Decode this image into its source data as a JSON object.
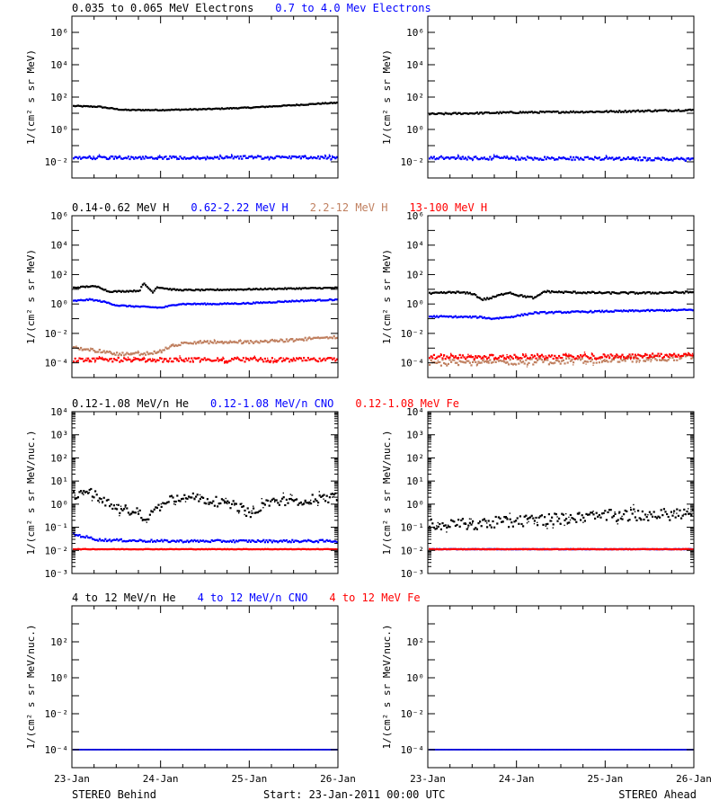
{
  "footer": {
    "left": "STEREO Behind",
    "center": "Start: 23-Jan-2011 00:00 UTC",
    "right": "STEREO Ahead"
  },
  "colors": {
    "black": "#000000",
    "blue": "#0000ff",
    "tan": "#c08060",
    "red": "#ff0000"
  },
  "chart_data": [
    {
      "type": "scatter",
      "row": 1,
      "col": 1,
      "legend": [
        {
          "text": "0.035 to 0.065 MeV Electrons",
          "color": "#000000"
        },
        {
          "text": "0.7 to 4.0 Mev Electrons",
          "color": "#0000ff"
        }
      ],
      "ylabel": "1/(cm² s sr MeV)",
      "yscale": "log",
      "ylim_exp": [
        -3,
        7
      ],
      "yticks": [
        {
          "exp": -2,
          "text": "10⁻²"
        },
        {
          "exp": 0,
          "text": "10⁰"
        },
        {
          "exp": 2,
          "text": "10²"
        },
        {
          "exp": 4,
          "text": "10⁴"
        },
        {
          "exp": 6,
          "text": "10⁶"
        }
      ],
      "xlim": [
        0,
        3
      ],
      "xticks": [],
      "grid": false,
      "series": [
        {
          "color": "#000000",
          "width": 2.2,
          "jitter": 0.03,
          "x": [
            0,
            0.3,
            0.5,
            0.6,
            1.0,
            1.5,
            2.0,
            2.5,
            2.8,
            3.0
          ],
          "y_exp": [
            1.45,
            1.4,
            1.25,
            1.2,
            1.2,
            1.25,
            1.35,
            1.5,
            1.6,
            1.65
          ]
        },
        {
          "color": "#0000ff",
          "width": 2.2,
          "jitter": 0.09,
          "x": [
            0,
            1.0,
            2.0,
            3.0
          ],
          "y_exp": [
            -1.75,
            -1.75,
            -1.72,
            -1.75
          ]
        }
      ]
    },
    {
      "type": "scatter",
      "row": 1,
      "col": 2,
      "legend": [],
      "ylabel": "1/(cm² s sr MeV)",
      "yscale": "log",
      "ylim_exp": [
        -3,
        7
      ],
      "yticks": [
        {
          "exp": -2,
          "text": "10⁻²"
        },
        {
          "exp": 0,
          "text": "10⁰"
        },
        {
          "exp": 2,
          "text": "10²"
        },
        {
          "exp": 4,
          "text": "10⁴"
        },
        {
          "exp": 6,
          "text": "10⁶"
        }
      ],
      "xlim": [
        0,
        3
      ],
      "xticks": [],
      "grid": false,
      "series": [
        {
          "color": "#000000",
          "width": 2.2,
          "jitter": 0.05,
          "x": [
            0,
            1.0,
            2.0,
            3.0
          ],
          "y_exp": [
            0.95,
            1.05,
            1.1,
            1.2
          ]
        },
        {
          "color": "#0000ff",
          "width": 2.2,
          "jitter": 0.1,
          "x": [
            0,
            1.0,
            2.0,
            3.0
          ],
          "y_exp": [
            -1.75,
            -1.78,
            -1.8,
            -1.85
          ]
        }
      ]
    },
    {
      "type": "scatter",
      "row": 2,
      "col": 1,
      "legend": [
        {
          "text": "0.14-0.62 MeV H",
          "color": "#000000"
        },
        {
          "text": "0.62-2.22 MeV H",
          "color": "#0000ff"
        },
        {
          "text": "2.2-12 MeV H",
          "color": "#c08060"
        },
        {
          "text": "13-100 MeV H",
          "color": "#ff0000"
        }
      ],
      "ylabel": "1/(cm² s sr MeV)",
      "yscale": "log",
      "ylim_exp": [
        -5,
        6
      ],
      "yticks": [
        {
          "exp": -4,
          "text": "10⁻⁴"
        },
        {
          "exp": -2,
          "text": "10⁻²"
        },
        {
          "exp": 0,
          "text": "10⁰"
        },
        {
          "exp": 2,
          "text": "10²"
        },
        {
          "exp": 4,
          "text": "10⁴"
        },
        {
          "exp": 6,
          "text": "10⁶"
        }
      ],
      "xlim": [
        0,
        3
      ],
      "xticks": [],
      "grid": false,
      "series": [
        {
          "color": "#000000",
          "width": 2.2,
          "jitter": 0.04,
          "x": [
            0,
            0.2,
            0.3,
            0.4,
            0.5,
            0.75,
            0.8,
            0.9,
            0.95,
            1.1,
            1.2,
            1.5,
            2.0,
            2.5,
            3.0
          ],
          "y_exp": [
            1.1,
            1.2,
            1.15,
            0.85,
            0.85,
            0.9,
            1.4,
            0.8,
            1.15,
            1.0,
            0.95,
            0.95,
            1.0,
            1.05,
            1.1
          ]
        },
        {
          "color": "#0000ff",
          "width": 2.2,
          "jitter": 0.04,
          "x": [
            0,
            0.2,
            0.35,
            0.5,
            0.8,
            1.0,
            1.2,
            1.6,
            2.0,
            2.5,
            3.0
          ],
          "y_exp": [
            0.2,
            0.3,
            0.15,
            -0.1,
            -0.2,
            -0.25,
            0.0,
            0.0,
            0.05,
            0.2,
            0.3
          ]
        },
        {
          "color": "#c08060",
          "width": 2.2,
          "jitter": 0.1,
          "x": [
            0,
            0.3,
            0.5,
            0.8,
            1.0,
            1.1,
            1.3,
            1.8,
            2.2,
            2.6,
            3.0
          ],
          "y_exp": [
            -3.0,
            -3.2,
            -3.4,
            -3.4,
            -3.2,
            -2.9,
            -2.6,
            -2.6,
            -2.55,
            -2.4,
            -2.25
          ]
        },
        {
          "color": "#ff0000",
          "width": 2.2,
          "jitter": 0.14,
          "x": [
            0,
            1.0,
            2.0,
            3.0
          ],
          "y_exp": [
            -3.8,
            -3.8,
            -3.8,
            -3.8
          ]
        }
      ]
    },
    {
      "type": "scatter",
      "row": 2,
      "col": 2,
      "legend": [],
      "ylabel": "1/(cm² s sr MeV)",
      "yscale": "log",
      "ylim_exp": [
        -5,
        6
      ],
      "yticks": [
        {
          "exp": -4,
          "text": "10⁻⁴"
        },
        {
          "exp": -2,
          "text": "10⁻²"
        },
        {
          "exp": 0,
          "text": "10⁰"
        },
        {
          "exp": 2,
          "text": "10²"
        },
        {
          "exp": 4,
          "text": "10⁴"
        },
        {
          "exp": 6,
          "text": "10⁶"
        }
      ],
      "xlim": [
        0,
        3
      ],
      "xticks": [],
      "grid": false,
      "series": [
        {
          "color": "#000000",
          "width": 2.2,
          "jitter": 0.06,
          "x": [
            0,
            0.3,
            0.5,
            0.6,
            0.7,
            0.8,
            0.9,
            1.0,
            1.2,
            1.3,
            1.5,
            2.0,
            2.5,
            3.0
          ],
          "y_exp": [
            0.7,
            0.8,
            0.7,
            0.3,
            0.4,
            0.6,
            0.8,
            0.6,
            0.4,
            0.85,
            0.8,
            0.75,
            0.75,
            0.8
          ]
        },
        {
          "color": "#0000ff",
          "width": 2.2,
          "jitter": 0.05,
          "x": [
            0,
            0.6,
            0.7,
            0.9,
            1.2,
            2.0,
            3.0
          ],
          "y_exp": [
            -0.85,
            -0.9,
            -1.0,
            -0.9,
            -0.6,
            -0.5,
            -0.4
          ]
        },
        {
          "color": "#c08060",
          "width": 2.2,
          "jitter": 0.2,
          "x": [
            0,
            1.5,
            3.0
          ],
          "y_exp": [
            -4.0,
            -3.9,
            -3.6
          ]
        },
        {
          "color": "#ff0000",
          "width": 2.2,
          "jitter": 0.15,
          "x": [
            0,
            1.5,
            3.0
          ],
          "y_exp": [
            -3.6,
            -3.6,
            -3.5
          ]
        }
      ]
    },
    {
      "type": "scatter",
      "row": 3,
      "col": 1,
      "legend": [
        {
          "text": "0.12-1.08 MeV/n He",
          "color": "#000000"
        },
        {
          "text": "0.12-1.08 MeV/n CNO",
          "color": "#0000ff"
        },
        {
          "text": "0.12-1.08 MeV Fe",
          "color": "#ff0000"
        }
      ],
      "ylabel": "1/(cm² s sr MeV/nuc.)",
      "yscale": "log",
      "ylim_exp": [
        -3,
        4
      ],
      "yticks": [
        {
          "exp": -3,
          "text": "10⁻³"
        },
        {
          "exp": -2,
          "text": "10⁻²"
        },
        {
          "exp": -1,
          "text": "10⁻¹"
        },
        {
          "exp": 0,
          "text": "10⁰"
        },
        {
          "exp": 1,
          "text": "10¹"
        },
        {
          "exp": 2,
          "text": "10²"
        },
        {
          "exp": 3,
          "text": "10³"
        },
        {
          "exp": 4,
          "text": "10⁴"
        }
      ],
      "xlim": [
        0,
        3
      ],
      "xticks": [],
      "grid": false,
      "series": [
        {
          "color": "#000000",
          "width": 2.2,
          "jitter": 0.2,
          "x": [
            0,
            0.15,
            0.25,
            0.35,
            0.5,
            0.7,
            0.85,
            0.95,
            1.1,
            1.3,
            1.5,
            1.7,
            1.9,
            2.0,
            2.2,
            2.5,
            2.8,
            3.0
          ],
          "y_exp": [
            0.35,
            0.5,
            0.45,
            0.1,
            -0.2,
            -0.3,
            -0.6,
            -0.2,
            0.2,
            0.3,
            0.2,
            0.05,
            -0.15,
            -0.45,
            0.1,
            0.15,
            0.25,
            0.3
          ]
        },
        {
          "color": "#0000ff",
          "width": 2.2,
          "jitter": 0.05,
          "x": [
            0,
            0.3,
            1.0,
            2.0,
            3.0
          ],
          "y_exp": [
            -1.3,
            -1.55,
            -1.6,
            -1.6,
            -1.6
          ]
        },
        {
          "color": "#ff0000",
          "width": 2.2,
          "jitter": 0.01,
          "x": [
            0,
            1.0,
            2.0,
            3.0
          ],
          "y_exp": [
            -1.95,
            -1.95,
            -1.95,
            -1.95
          ]
        }
      ]
    },
    {
      "type": "scatter",
      "row": 3,
      "col": 2,
      "legend": [],
      "ylabel": "1/(cm² s sr MeV/nuc.)",
      "yscale": "log",
      "ylim_exp": [
        -3,
        4
      ],
      "yticks": [
        {
          "exp": -3,
          "text": "10⁻³"
        },
        {
          "exp": -2,
          "text": "10⁻²"
        },
        {
          "exp": -1,
          "text": "10⁻¹"
        },
        {
          "exp": 0,
          "text": "10⁰"
        },
        {
          "exp": 1,
          "text": "10¹"
        },
        {
          "exp": 2,
          "text": "10²"
        },
        {
          "exp": 3,
          "text": "10³"
        },
        {
          "exp": 4,
          "text": "10⁴"
        }
      ],
      "xlim": [
        0,
        3
      ],
      "xticks": [],
      "grid": false,
      "series": [
        {
          "color": "#000000",
          "width": 2.2,
          "jitter": 0.25,
          "x": [
            0,
            0.5,
            1.0,
            1.5,
            2.0,
            2.5,
            3.0
          ],
          "y_exp": [
            -0.9,
            -0.85,
            -0.75,
            -0.6,
            -0.5,
            -0.45,
            -0.45
          ]
        },
        {
          "color": "#0000ff",
          "width": 2.2,
          "jitter": 0.01,
          "x": [
            0,
            1.0,
            2.0,
            3.0
          ],
          "y_exp": [
            -1.95,
            -1.95,
            -1.95,
            -1.95
          ]
        },
        {
          "color": "#ff0000",
          "width": 2.2,
          "jitter": 0.01,
          "x": [
            0,
            1.0,
            2.0,
            3.0
          ],
          "y_exp": [
            -1.95,
            -1.95,
            -1.95,
            -1.95
          ]
        }
      ]
    },
    {
      "type": "scatter",
      "row": 4,
      "col": 1,
      "legend": [
        {
          "text": "4 to 12 MeV/n He",
          "color": "#000000"
        },
        {
          "text": "4 to 12 MeV/n CNO",
          "color": "#0000ff"
        },
        {
          "text": "4 to 12 MeV Fe",
          "color": "#ff0000"
        }
      ],
      "ylabel": "1/(cm² s sr MeV/nuc.)",
      "yscale": "log",
      "ylim_exp": [
        -5,
        4
      ],
      "yticks": [
        {
          "exp": -4,
          "text": "10⁻⁴"
        },
        {
          "exp": -2,
          "text": "10⁻²"
        },
        {
          "exp": 0,
          "text": "10⁰"
        },
        {
          "exp": 2,
          "text": "10²"
        }
      ],
      "xlim": [
        0,
        3
      ],
      "xticks": [
        {
          "x": 0,
          "text": "23-Jan"
        },
        {
          "x": 1,
          "text": "24-Jan"
        },
        {
          "x": 2,
          "text": "25-Jan"
        },
        {
          "x": 3,
          "text": "26-Jan"
        }
      ],
      "grid": false,
      "series": [
        {
          "color": "#000000",
          "width": 1.6,
          "jitter": 0.0,
          "x": [
            0,
            3.0
          ],
          "y_exp": [
            -4.0,
            -4.0
          ]
        },
        {
          "color": "#0000ff",
          "width": 1.6,
          "jitter": 0.0,
          "x": [
            0,
            3.0
          ],
          "y_exp": [
            -4.0,
            -4.0
          ]
        }
      ]
    },
    {
      "type": "scatter",
      "row": 4,
      "col": 2,
      "legend": [],
      "ylabel": "1/(cm² s sr MeV/nuc.)",
      "yscale": "log",
      "ylim_exp": [
        -5,
        4
      ],
      "yticks": [
        {
          "exp": -4,
          "text": "10⁻⁴"
        },
        {
          "exp": -2,
          "text": "10⁻²"
        },
        {
          "exp": 0,
          "text": "10⁰"
        },
        {
          "exp": 2,
          "text": "10²"
        }
      ],
      "xlim": [
        0,
        3
      ],
      "xticks": [
        {
          "x": 0,
          "text": "23-Jan"
        },
        {
          "x": 1,
          "text": "24-Jan"
        },
        {
          "x": 2,
          "text": "25-Jan"
        },
        {
          "x": 3,
          "text": "26-Jan"
        }
      ],
      "grid": false,
      "series": [
        {
          "color": "#000000",
          "width": 1.6,
          "jitter": 0.0,
          "x": [
            0,
            3.0
          ],
          "y_exp": [
            -4.0,
            -4.0
          ]
        },
        {
          "color": "#0000ff",
          "width": 1.6,
          "jitter": 0.0,
          "x": [
            0,
            3.0
          ],
          "y_exp": [
            -4.0,
            -4.0
          ]
        }
      ]
    }
  ]
}
